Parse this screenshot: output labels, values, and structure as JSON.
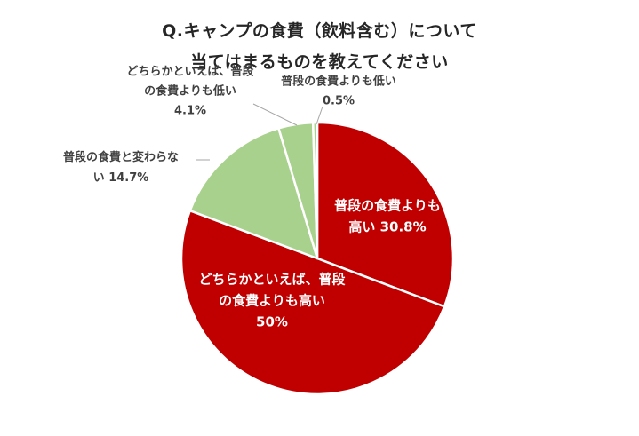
{
  "title_lines": [
    "Q.キャンプの食費（飲料含む）について",
    "当てはまるものを教えてください"
  ],
  "chart_data": {
    "type": "pie",
    "start_angle_deg": 0,
    "direction": "clockwise",
    "slices": [
      {
        "label_lines": [
          "普段の食費よりも",
          "高い 30.8%"
        ],
        "value": 30.8,
        "color": "#c00000",
        "label_color": "#ffffff"
      },
      {
        "label_lines": [
          "どちらかといえば、普段",
          "の食費よりも高い",
          "50%"
        ],
        "value": 50.0,
        "color": "#c00000",
        "label_color": "#ffffff"
      },
      {
        "label_lines": [
          "普段の食費と変わらな",
          "い 14.7%"
        ],
        "value": 14.7,
        "color": "#a9d18e",
        "label_color": "#404040"
      },
      {
        "label_lines": [
          "どちらかといえば、普段",
          "の食費よりも低い",
          "4.1%"
        ],
        "value": 4.1,
        "color": "#a9d18e",
        "label_color": "#404040"
      },
      {
        "label_lines": [
          "普段の食費よりも低い",
          "0.5%"
        ],
        "value": 0.5,
        "color": "#a9d18e",
        "label_color": "#404040"
      }
    ]
  }
}
